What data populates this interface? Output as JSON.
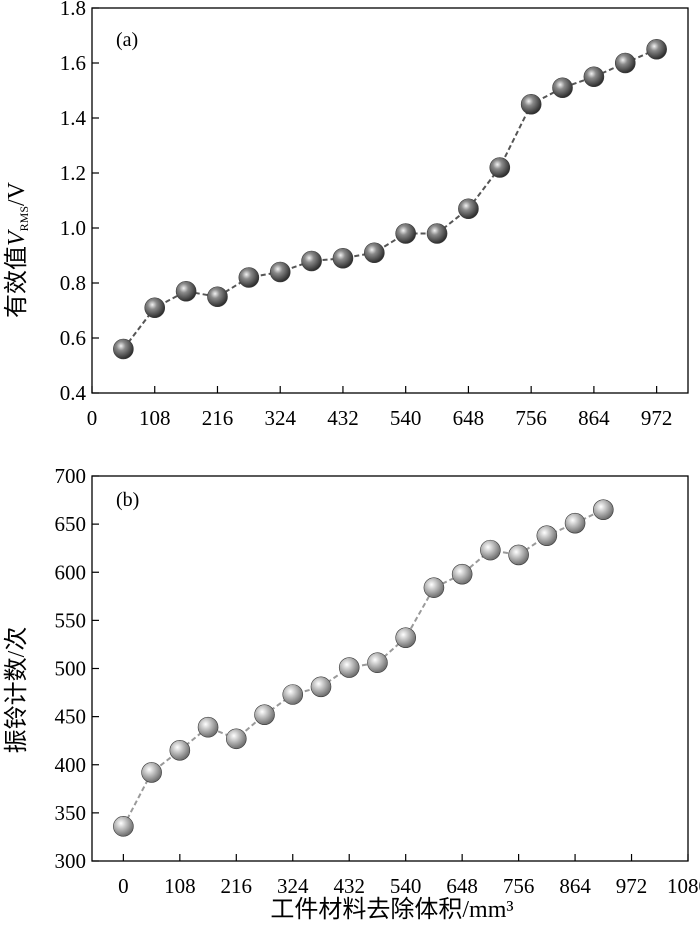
{
  "xlabel": "工件材料去除体积/mm³",
  "chart_data": [
    {
      "type": "line",
      "panel_label": "(a)",
      "ylabel_prefix": "有效值",
      "ylabel_var": "V",
      "ylabel_sub": "RMS",
      "ylabel_suffix": "/V",
      "xlim": [
        0,
        1026
      ],
      "ylim": [
        0.4,
        1.8
      ],
      "xticks": [
        0,
        108,
        216,
        324,
        432,
        540,
        648,
        756,
        864,
        972
      ],
      "yticks": [
        "0.4",
        "0.6",
        "0.8",
        "1.0",
        "1.2",
        "1.4",
        "1.6",
        "1.8"
      ],
      "marker_color": "#555555",
      "series": [
        {
          "x": [
            54,
            108,
            162,
            216,
            270,
            324,
            378,
            432,
            486,
            540,
            594,
            648,
            702,
            756,
            810,
            864,
            918,
            972
          ],
          "y": [
            0.56,
            0.71,
            0.77,
            0.75,
            0.82,
            0.84,
            0.88,
            0.89,
            0.91,
            0.98,
            0.98,
            1.07,
            1.22,
            1.45,
            1.51,
            1.55,
            1.6,
            1.65
          ]
        }
      ]
    },
    {
      "type": "line",
      "panel_label": "(b)",
      "ylabel": "振铃计数/次",
      "xlim": [
        -60,
        1080
      ],
      "ylim": [
        300,
        700
      ],
      "xticks": [
        0,
        108,
        216,
        324,
        432,
        540,
        648,
        756,
        864,
        972,
        1080
      ],
      "yticks": [
        "300",
        "350",
        "400",
        "450",
        "500",
        "550",
        "600",
        "650",
        "700"
      ],
      "marker_color": "#a0a0a0",
      "series": [
        {
          "x": [
            0,
            54,
            108,
            162,
            216,
            270,
            324,
            378,
            432,
            486,
            540,
            594,
            648,
            702,
            756,
            810,
            864,
            918
          ],
          "y": [
            336,
            392,
            415,
            439,
            427,
            452,
            473,
            481,
            501,
            506,
            532,
            584,
            598,
            623,
            618,
            638,
            651,
            665
          ]
        }
      ]
    }
  ]
}
